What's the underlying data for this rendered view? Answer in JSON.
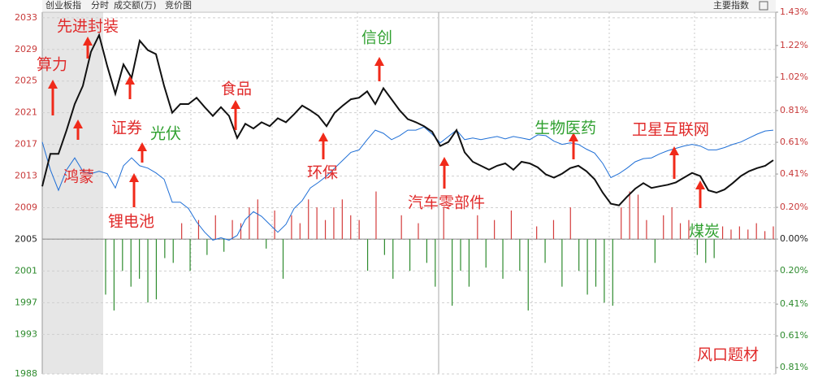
{
  "chart_data": {
    "type": "line",
    "title": "创业板指",
    "tabs": [
      "分时",
      "成交额(万)",
      "竞价图"
    ],
    "menu": "主要指数",
    "ylim": [
      1988,
      2033.7
    ],
    "yticks": [
      2033,
      2029,
      2025,
      2021,
      2017,
      2013,
      2009,
      2005,
      2001,
      1997,
      1993,
      1988
    ],
    "y2lim": [
      -0.85,
      1.43
    ],
    "y2ticks": [
      {
        "value": 1.43,
        "label": "1.43%"
      },
      {
        "value": 1.22,
        "label": "1.22%"
      },
      {
        "value": 1.02,
        "label": "1.02%"
      },
      {
        "value": 0.81,
        "label": "0.81%"
      },
      {
        "value": 0.61,
        "label": "0.61%"
      },
      {
        "value": 0.41,
        "label": "0.41%"
      },
      {
        "value": 0.2,
        "label": "0.20%"
      },
      {
        "value": 0,
        "label": "0.00%"
      },
      {
        "value": -0.2,
        "label": "0.20%"
      },
      {
        "value": -0.41,
        "label": "0.41%"
      },
      {
        "value": -0.61,
        "label": "0.61%"
      },
      {
        "value": -0.81,
        "label": "0.81%"
      }
    ],
    "grid": true,
    "series": [
      {
        "color": "#111111",
        "values": [
          2011.7,
          2015.8,
          2015.8,
          2018.8,
          2022.1,
          2024.4,
          2028.7,
          2030.8,
          2026.9,
          2023.4,
          2027.1,
          2025.4,
          2030.1,
          2028.9,
          2028.4,
          2024.4,
          2021.0,
          2022.1,
          2022.1,
          2022.9,
          2021.7,
          2020.6,
          2021.7,
          2020.6,
          2017.8,
          2019.6,
          2019.0,
          2019.8,
          2019.3,
          2020.3,
          2019.8,
          2020.8,
          2021.9,
          2021.3,
          2020.6,
          2019.3,
          2021.0,
          2021.9,
          2022.7,
          2022.9,
          2023.7,
          2022.1,
          2024.1,
          2022.7,
          2021.3,
          2020.2,
          2019.8,
          2019.3,
          2018.6,
          2016.8,
          2017.3,
          2018.8,
          2016.0,
          2014.8,
          2014.3,
          2013.8,
          2014.3,
          2014.6,
          2013.8,
          2014.8,
          2014.6,
          2014.1,
          2013.2,
          2012.8,
          2013.3,
          2014.0,
          2014.3,
          2013.6,
          2012.6,
          2010.9,
          2009.5,
          2009.3,
          2010.4,
          2011.4,
          2012.1,
          2011.5,
          2011.7,
          2011.9,
          2012.2,
          2012.8,
          2013.4,
          2013.0,
          2011.2,
          2010.9,
          2011.3,
          2012.1,
          2013.0,
          2013.6,
          2014.0,
          2014.3,
          2015.0
        ]
      },
      {
        "color": "#1f6fd6",
        "values": [
          2017.3,
          2013.8,
          2011.2,
          2013.8,
          2015.3,
          2013.6,
          2013.3,
          2013.6,
          2013.3,
          2011.5,
          2014.3,
          2015.3,
          2014.3,
          2014.0,
          2013.4,
          2012.6,
          2009.7,
          2009.7,
          2008.9,
          2007.2,
          2005.9,
          2004.9,
          2005.2,
          2004.9,
          2005.5,
          2007.5,
          2008.5,
          2007.9,
          2006.9,
          2005.9,
          2006.9,
          2008.9,
          2009.9,
          2011.5,
          2012.2,
          2013.0,
          2014.0,
          2015.0,
          2016.0,
          2016.3,
          2017.6,
          2018.8,
          2018.4,
          2017.6,
          2018.1,
          2018.8,
          2018.8,
          2019.2,
          2018.3,
          2017.2,
          2018.0,
          2018.8,
          2017.6,
          2017.8,
          2017.6,
          2017.8,
          2018.0,
          2017.7,
          2018.0,
          2017.8,
          2017.6,
          2018.2,
          2018.1,
          2017.4,
          2017.0,
          2017.2,
          2017.0,
          2016.4,
          2015.9,
          2014.6,
          2012.8,
          2013.3,
          2014.0,
          2014.8,
          2015.2,
          2015.3,
          2015.8,
          2016.2,
          2016.5,
          2016.8,
          2017.0,
          2016.8,
          2016.3,
          2016.3,
          2016.6,
          2017.0,
          2017.3,
          2017.8,
          2018.3,
          2018.7,
          2018.8
        ]
      }
    ],
    "bars": {
      "axis": "y2",
      "up_color": "#d43c3c",
      "down_color": "#2e8b2e",
      "values": [
        -0.35,
        -0.45,
        -0.2,
        -0.3,
        -0.25,
        -0.4,
        -0.38,
        -0.12,
        -0.15,
        0.1,
        -0.2,
        0.12,
        -0.1,
        0.15,
        -0.08,
        0.12,
        0.1,
        0.2,
        0.25,
        -0.06,
        0.18,
        -0.25,
        0.15,
        0.1,
        0.25,
        0.2,
        0.12,
        0.2,
        0.25,
        0.15,
        0.12,
        -0.2,
        0.3,
        -0.1,
        -0.25,
        0.15,
        -0.2,
        0.1,
        -0.15,
        -0.3,
        0.2,
        -0.42,
        -0.2,
        -0.3,
        0.15,
        -0.18,
        0.12,
        -0.25,
        0.18,
        -0.2,
        -0.45,
        0.08,
        -0.15,
        0.12,
        -0.3,
        0.2,
        -0.2,
        -0.35,
        -0.3,
        -0.4,
        -0.42,
        0.2,
        0.3,
        0.28,
        0.12,
        -0.15,
        0.15,
        0.2,
        0.1,
        0.12,
        -0.1,
        -0.15,
        -0.12,
        0.08,
        0.06,
        0.08,
        0.06,
        0.1,
        0.05,
        0.08
      ]
    },
    "annotations": [
      {
        "text": "算力",
        "color": "#e02a2a"
      },
      {
        "text": "先进封装",
        "color": "#e02a2a"
      },
      {
        "text": "鸿蒙",
        "color": "#e02a2a"
      },
      {
        "text": "证券",
        "color": "#e02a2a"
      },
      {
        "text": "光伏",
        "color": "#2fa02f"
      },
      {
        "text": "锂电池",
        "color": "#e02a2a"
      },
      {
        "text": "食品",
        "color": "#e02a2a"
      },
      {
        "text": "环保",
        "color": "#e02a2a"
      },
      {
        "text": "信创",
        "color": "#2fa02f"
      },
      {
        "text": "汽车零部件",
        "color": "#e02a2a"
      },
      {
        "text": "生物医药",
        "color": "#2fa02f"
      },
      {
        "text": "卫星互联网",
        "color": "#e02a2a"
      },
      {
        "text": "煤炭",
        "color": "#2fa02f"
      },
      {
        "text": "风口题材",
        "color": "#e02a2a"
      }
    ]
  }
}
